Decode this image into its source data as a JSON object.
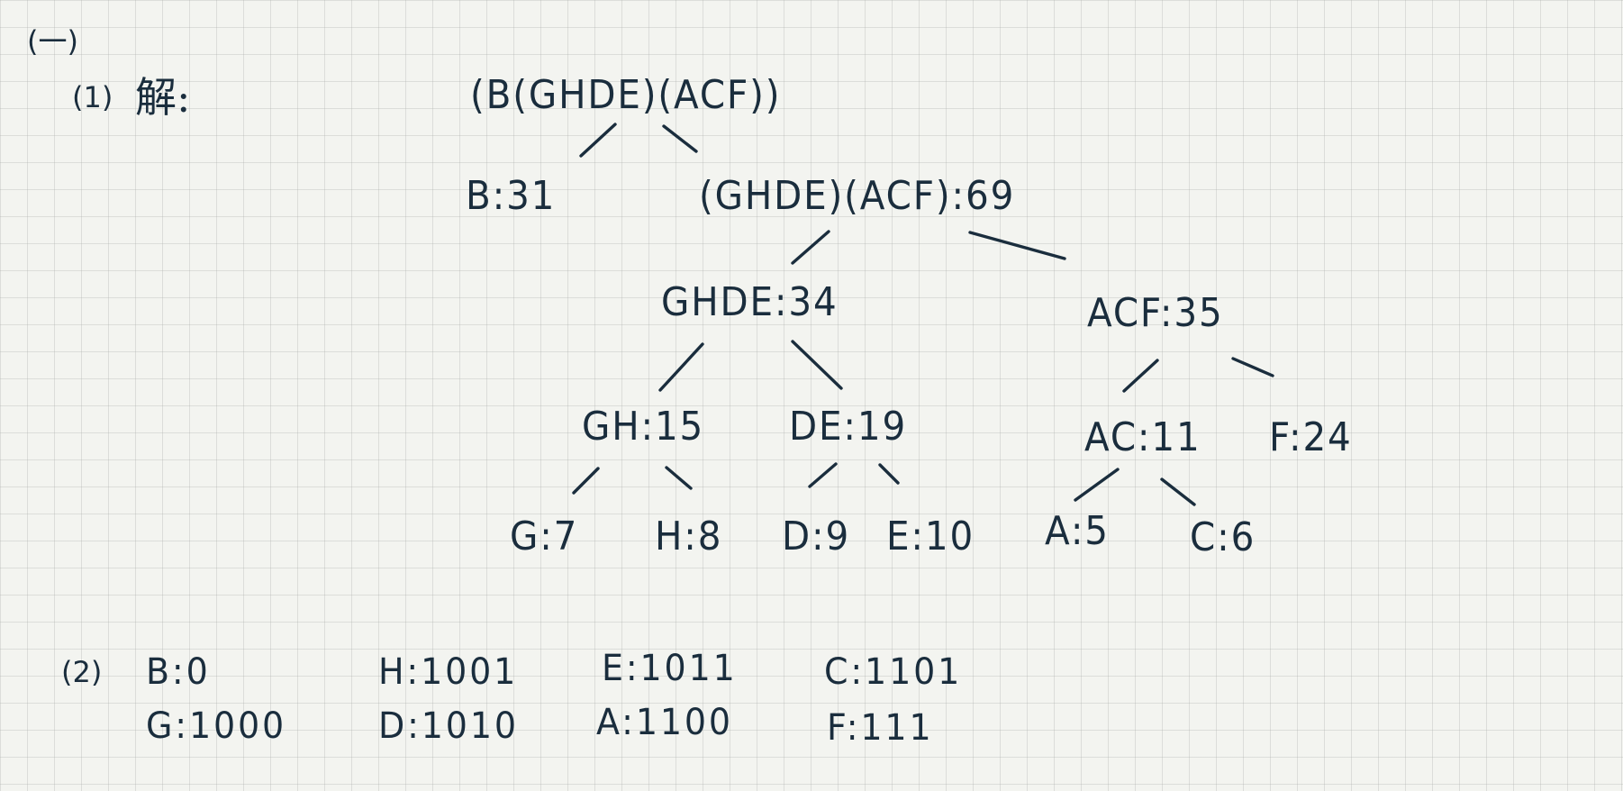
{
  "section_label": "(一)",
  "part1": {
    "label": "(1)",
    "solve": "解:",
    "tree": {
      "root": "(B(GHDE)(ACF))",
      "b": "B:31",
      "ghde_acf": "(GHDE)(ACF):69",
      "ghde": "GHDE:34",
      "acf": "ACF:35",
      "gh": "GH:15",
      "de": "DE:19",
      "ac": "AC:11",
      "f": "F:24",
      "g": "G:7",
      "h": "H:8",
      "d": "D:9",
      "e": "E:10",
      "a": "A:5",
      "c": "C:6"
    }
  },
  "part2": {
    "label": "(2)",
    "codes": {
      "b": "B:0",
      "h": "H:1001",
      "e": "E:1011",
      "c": "C:1101",
      "g": "G:1000",
      "d": "D:1010",
      "a": "A:1100",
      "f": "F:111"
    }
  }
}
